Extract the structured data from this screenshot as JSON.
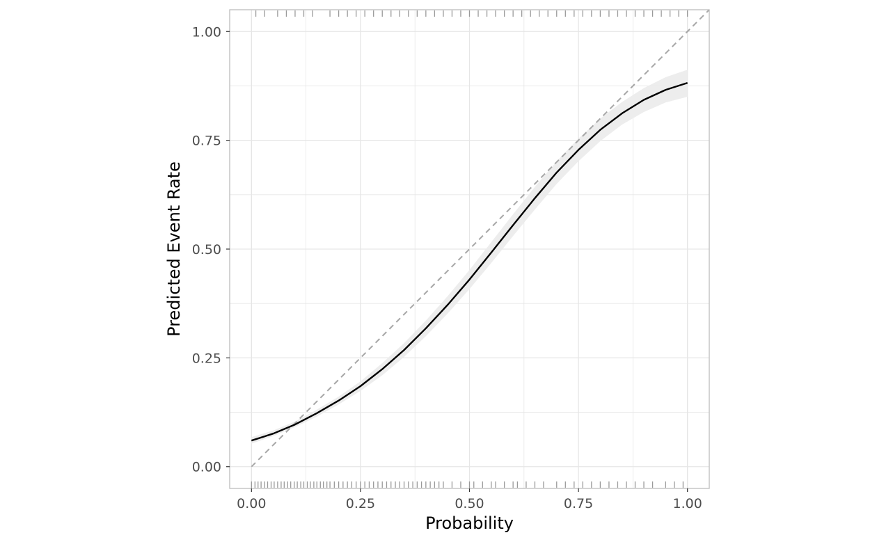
{
  "chart_data": {
    "type": "line",
    "title": "",
    "xlabel": "Probability",
    "ylabel": "Predicted Event Rate",
    "xlim": [
      -0.05,
      1.05
    ],
    "ylim": [
      -0.05,
      1.05
    ],
    "x_ticks": [
      0.0,
      0.25,
      0.5,
      0.75,
      1.0
    ],
    "x_tick_labels": [
      "0.00",
      "0.25",
      "0.50",
      "0.75",
      "1.00"
    ],
    "y_ticks": [
      0.0,
      0.25,
      0.5,
      0.75,
      1.0
    ],
    "y_tick_labels": [
      "0.00",
      "0.25",
      "0.50",
      "0.75",
      "1.00"
    ],
    "grid": true,
    "reference_line": {
      "x": [
        0,
        1.05
      ],
      "y": [
        0,
        1.05
      ],
      "style": "dashed"
    },
    "series": [
      {
        "x": [
          0.0,
          0.05,
          0.1,
          0.15,
          0.2,
          0.25,
          0.3,
          0.35,
          0.4,
          0.45,
          0.5,
          0.55,
          0.6,
          0.65,
          0.7,
          0.75,
          0.8,
          0.85,
          0.9,
          0.95,
          1.0
        ],
        "y": [
          0.06,
          0.076,
          0.097,
          0.123,
          0.152,
          0.185,
          0.224,
          0.268,
          0.318,
          0.372,
          0.43,
          0.492,
          0.555,
          0.617,
          0.676,
          0.728,
          0.774,
          0.812,
          0.843,
          0.866,
          0.882
        ],
        "lower": [
          0.053,
          0.07,
          0.091,
          0.115,
          0.143,
          0.174,
          0.21,
          0.252,
          0.3,
          0.352,
          0.408,
          0.468,
          0.53,
          0.591,
          0.65,
          0.702,
          0.748,
          0.786,
          0.815,
          0.837,
          0.85
        ],
        "upper": [
          0.068,
          0.083,
          0.104,
          0.131,
          0.161,
          0.196,
          0.238,
          0.284,
          0.336,
          0.392,
          0.452,
          0.516,
          0.58,
          0.643,
          0.702,
          0.754,
          0.8,
          0.838,
          0.87,
          0.895,
          0.912
        ]
      }
    ],
    "rug_bottom": [
      0.0,
      0.008,
      0.015,
      0.022,
      0.03,
      0.037,
      0.045,
      0.052,
      0.06,
      0.068,
      0.075,
      0.083,
      0.09,
      0.098,
      0.105,
      0.113,
      0.12,
      0.128,
      0.135,
      0.143,
      0.15,
      0.158,
      0.165,
      0.173,
      0.18,
      0.19,
      0.2,
      0.21,
      0.22,
      0.23,
      0.24,
      0.25,
      0.26,
      0.27,
      0.28,
      0.29,
      0.3,
      0.31,
      0.32,
      0.33,
      0.34,
      0.35,
      0.36,
      0.37,
      0.38,
      0.39,
      0.4,
      0.41,
      0.42,
      0.43,
      0.44,
      0.46,
      0.48,
      0.5,
      0.51,
      0.53,
      0.55,
      0.56,
      0.58,
      0.6,
      0.61,
      0.63,
      0.65,
      0.67,
      0.7,
      0.72,
      0.74,
      0.76,
      0.78,
      0.8,
      0.82,
      0.84,
      0.86,
      0.88,
      0.9,
      0.92,
      0.95,
      0.97,
      0.99
    ],
    "rug_top": [
      0.01,
      0.03,
      0.06,
      0.08,
      0.1,
      0.12,
      0.14,
      0.18,
      0.2,
      0.22,
      0.24,
      0.26,
      0.28,
      0.3,
      0.32,
      0.34,
      0.36,
      0.38,
      0.4,
      0.42,
      0.44,
      0.46,
      0.48,
      0.5,
      0.52,
      0.54,
      0.56,
      0.58,
      0.6,
      0.62,
      0.64,
      0.66,
      0.68,
      0.7,
      0.72,
      0.74,
      0.76,
      0.78,
      0.8,
      0.82,
      0.84,
      0.86,
      0.88,
      0.9,
      0.92,
      0.94,
      0.96,
      0.98,
      1.0
    ]
  },
  "colors": {
    "curve": "#000000",
    "band": "#ebebeb",
    "reference": "#a6a6a6",
    "rug": "#999999",
    "grid": "#e6e6e6",
    "frame": "#bdbdbd"
  }
}
